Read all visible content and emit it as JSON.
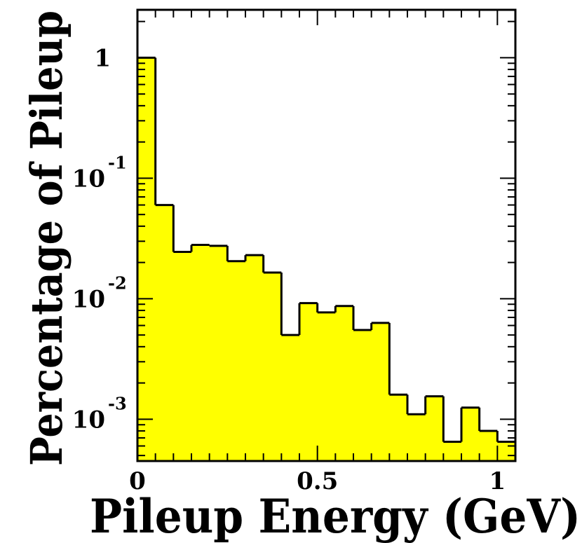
{
  "chart_data": {
    "type": "histogram",
    "xlabel": "Pileup Energy (GeV)",
    "ylabel": "Percentage of Pileup",
    "xlim": [
      0,
      1.05
    ],
    "ylim": [
      0.00045,
      2.5
    ],
    "yscale": "log",
    "grid": false,
    "fill_color": "#ffff00",
    "line_color": "#000000",
    "x_ticks": [
      {
        "value": 0,
        "label": "0"
      },
      {
        "value": 0.5,
        "label": "0.5"
      },
      {
        "value": 1,
        "label": "1"
      }
    ],
    "y_ticks": [
      {
        "value": 1,
        "base": "1",
        "exp": ""
      },
      {
        "value": 0.1,
        "base": "10",
        "exp": "-1"
      },
      {
        "value": 0.01,
        "base": "10",
        "exp": "-2"
      },
      {
        "value": 0.001,
        "base": "10",
        "exp": "-3"
      }
    ],
    "bin_edges": [
      0,
      0.05,
      0.1,
      0.15,
      0.2,
      0.25,
      0.3,
      0.35,
      0.4,
      0.45,
      0.5,
      0.55,
      0.6,
      0.65,
      0.7,
      0.75,
      0.8,
      0.85,
      0.9,
      0.95,
      1.0,
      1.05
    ],
    "values": [
      1.0,
      0.06,
      0.0245,
      0.028,
      0.0275,
      0.0205,
      0.023,
      0.0165,
      0.005,
      0.0092,
      0.0077,
      0.0087,
      0.0055,
      0.0063,
      0.0016,
      0.0011,
      0.00155,
      0.00065,
      0.00125,
      0.0008,
      0.00065
    ]
  }
}
